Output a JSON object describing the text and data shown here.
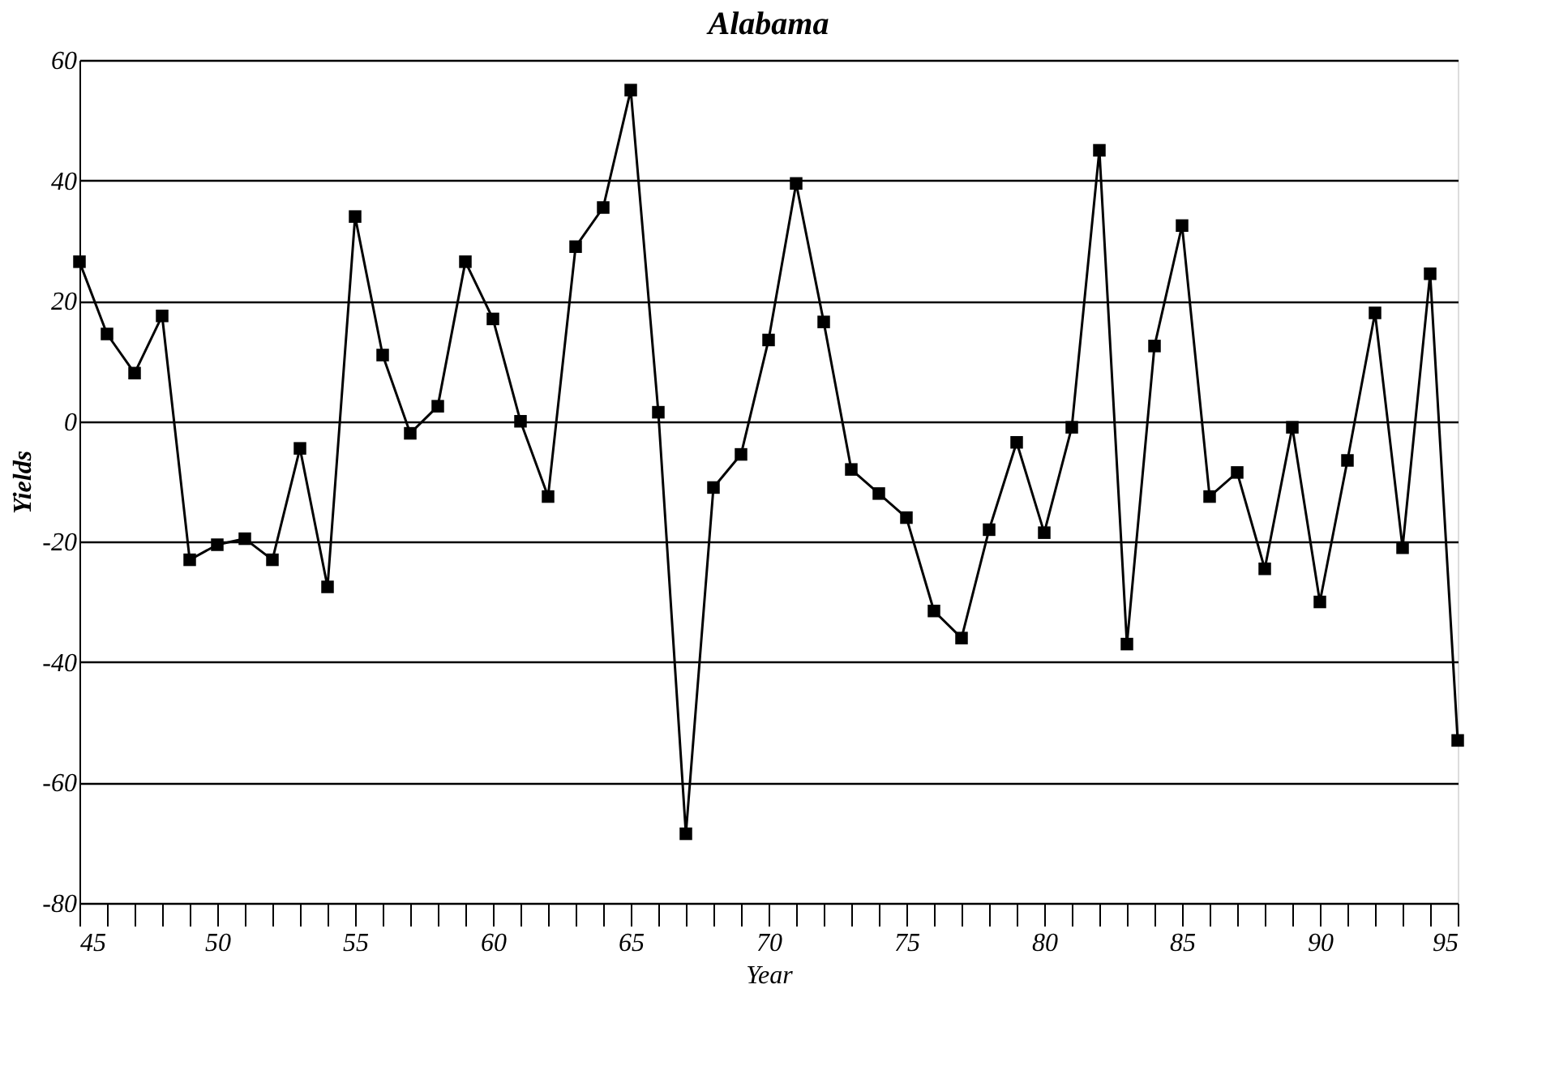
{
  "chart_data": {
    "type": "line",
    "title": "Alabama",
    "xlabel": "Year",
    "ylabel": "Yields",
    "x": [
      45,
      46,
      47,
      48,
      49,
      50,
      51,
      52,
      53,
      54,
      55,
      56,
      57,
      58,
      59,
      60,
      61,
      62,
      63,
      64,
      65,
      66,
      67,
      68,
      69,
      70,
      71,
      72,
      73,
      74,
      75,
      76,
      77,
      78,
      79,
      80,
      81,
      82,
      83,
      84,
      85,
      86,
      87,
      88,
      89,
      90,
      91,
      92,
      93,
      94,
      95
    ],
    "series": [
      {
        "color": "#000000",
        "values": [
          26.5,
          14.5,
          8,
          17.5,
          -23,
          -20.5,
          -19.5,
          -23,
          -4.5,
          -27.5,
          34,
          11,
          -2,
          2.5,
          26.5,
          17,
          0,
          -12.5,
          29,
          35.5,
          55,
          1.5,
          -68.5,
          -11,
          -5.5,
          13.5,
          39.5,
          16.5,
          -8,
          -12,
          -16,
          -31.5,
          -36,
          -18,
          -3.5,
          -18.5,
          -1,
          45,
          -37,
          12.5,
          32.5,
          -12.5,
          -8.5,
          -24.5,
          -1,
          -30,
          -6.5,
          18,
          -21,
          24.5,
          -53
        ]
      }
    ],
    "xlim": [
      45,
      95
    ],
    "xticks": [
      45,
      {
        "value": 46,
        "label": null
      },
      {
        "value": 47,
        "label": null
      },
      {
        "value": 48,
        "label": null
      },
      {
        "value": 49,
        "label": null
      },
      50,
      {
        "value": 51,
        "label": null
      },
      {
        "value": 52,
        "label": null
      },
      {
        "value": 53,
        "label": null
      },
      {
        "value": 54,
        "label": null
      },
      55,
      {
        "value": 56,
        "label": null
      },
      {
        "value": 57,
        "label": null
      },
      {
        "value": 58,
        "label": null
      },
      {
        "value": 59,
        "label": null
      },
      60,
      {
        "value": 61,
        "label": null
      },
      {
        "value": 62,
        "label": null
      },
      {
        "value": 63,
        "label": null
      },
      {
        "value": 64,
        "label": null
      },
      65,
      {
        "value": 66,
        "label": null
      },
      {
        "value": 67,
        "label": null
      },
      {
        "value": 68,
        "label": null
      },
      {
        "value": 69,
        "label": null
      },
      70,
      {
        "value": 71,
        "label": null
      },
      {
        "value": 72,
        "label": null
      },
      {
        "value": 73,
        "label": null
      },
      {
        "value": 74,
        "label": null
      },
      75,
      {
        "value": 76,
        "label": null
      },
      {
        "value": 77,
        "label": null
      },
      {
        "value": 78,
        "label": null
      },
      {
        "value": 79,
        "label": null
      },
      80,
      {
        "value": 81,
        "label": null
      },
      {
        "value": 82,
        "label": null
      },
      {
        "value": 83,
        "label": null
      },
      {
        "value": 84,
        "label": null
      },
      85,
      {
        "value": 86,
        "label": null
      },
      {
        "value": 87,
        "label": null
      },
      {
        "value": 88,
        "label": null
      },
      {
        "value": 89,
        "label": null
      },
      90,
      {
        "value": 91,
        "label": null
      },
      {
        "value": 92,
        "label": null
      },
      {
        "value": 93,
        "label": null
      },
      {
        "value": 94,
        "label": null
      },
      95
    ],
    "ylim": [
      -80,
      60
    ],
    "yticks": [
      -80,
      -60,
      -40,
      -20,
      0,
      20,
      40,
      60
    ],
    "grid": "y",
    "marker": "square",
    "line_style": "solid"
  }
}
